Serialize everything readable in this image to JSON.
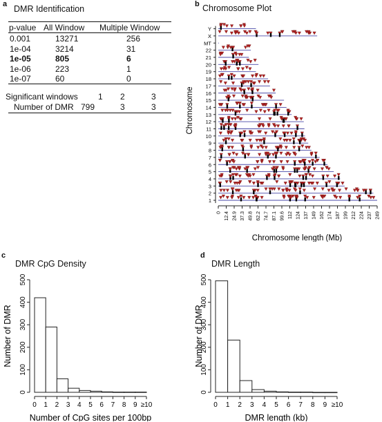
{
  "panels": {
    "a": {
      "letter": "a",
      "title": "DMR Identification"
    },
    "b": {
      "letter": "b",
      "title": "Chromosome Plot"
    },
    "c": {
      "letter": "c",
      "title": "DMR CpG Density"
    },
    "d": {
      "letter": "d",
      "title": "DMR Length"
    }
  },
  "table": {
    "headers": [
      "p-value",
      "All Window",
      "Multiple Window"
    ],
    "rows": [
      {
        "p": "0.001",
        "all": "13271",
        "multi": "256",
        "bold": false
      },
      {
        "p": "1e-04",
        "all": "3214",
        "multi": "31",
        "bold": false
      },
      {
        "p": "1e-05",
        "all": "805",
        "multi": "6",
        "bold": true
      },
      {
        "p": "1e-06",
        "all": "223",
        "multi": "1",
        "bold": false
      },
      {
        "p": "1e-07",
        "all": "60",
        "multi": "0",
        "bold": false
      }
    ],
    "summary": {
      "sig_label": "Significant windows",
      "sig_values": [
        "1",
        "2",
        "3"
      ],
      "dmr_label": "Number of DMR",
      "dmr_values": [
        "799",
        "3",
        "3"
      ]
    }
  },
  "chart_data": [
    {
      "type": "scatter",
      "title": "Chromosome Plot",
      "xlabel": "Chromosome length (Mb)",
      "ylabel": "Chromosome",
      "x_ticks": [
        "0",
        "12.4",
        "24.9",
        "37.3",
        "49.8",
        "62.2",
        "74.7",
        "87.1",
        "99.6",
        "112",
        "124",
        "137",
        "149",
        "162",
        "174",
        "187",
        "199",
        "212",
        "224",
        "237",
        "249"
      ],
      "chromosomes": [
        "1",
        "2",
        "3",
        "4",
        "5",
        "6",
        "7",
        "8",
        "9",
        "10",
        "11",
        "12",
        "13",
        "14",
        "15",
        "16",
        "17",
        "18",
        "19",
        "20",
        "21",
        "22",
        "MT",
        "X",
        "Y"
      ],
      "chromosome_lengths_mb": [
        249,
        243,
        198,
        191,
        181,
        171,
        159,
        146,
        141,
        136,
        135,
        134,
        115,
        107,
        103,
        90,
        81,
        78,
        59,
        63,
        48,
        51,
        0.02,
        155,
        59
      ],
      "marker_color": "#b22222",
      "dmr_marker_color": "#000000",
      "line_color": "#4a4aa8"
    },
    {
      "type": "bar",
      "title": "DMR CpG Density",
      "xlabel": "Number of CpG sites per 100bp",
      "ylabel": "Number of DMR",
      "categories": [
        "0-1",
        "1-2",
        "2-3",
        "3-4",
        "4-5",
        "5-6",
        "6-7",
        "7-8",
        "8-9",
        "9-≥10"
      ],
      "values": [
        420,
        290,
        60,
        18,
        8,
        5,
        2,
        1,
        1,
        1
      ],
      "x_tick_labels": [
        "0",
        "1",
        "2",
        "3",
        "4",
        "5",
        "6",
        "7",
        "8",
        "9",
        "≥10"
      ],
      "y_ticks": [
        0,
        100,
        200,
        300,
        400,
        500
      ],
      "ylim": [
        0,
        500
      ]
    },
    {
      "type": "bar",
      "title": "DMR Length",
      "xlabel": "DMR length (kb)",
      "ylabel": "Number of DMR",
      "categories": [
        "0-1",
        "1-2",
        "2-3",
        "3-4",
        "4-5",
        "5-6",
        "6-7",
        "7-8",
        "8-9",
        "9-≥10"
      ],
      "values": [
        495,
        232,
        52,
        12,
        5,
        2,
        1,
        1,
        0,
        0
      ],
      "x_tick_labels": [
        "0",
        "1",
        "2",
        "3",
        "4",
        "5",
        "6",
        "7",
        "8",
        "9",
        "≥10"
      ],
      "y_ticks": [
        0,
        100,
        200,
        300,
        400,
        500
      ],
      "ylim": [
        0,
        500
      ]
    }
  ]
}
